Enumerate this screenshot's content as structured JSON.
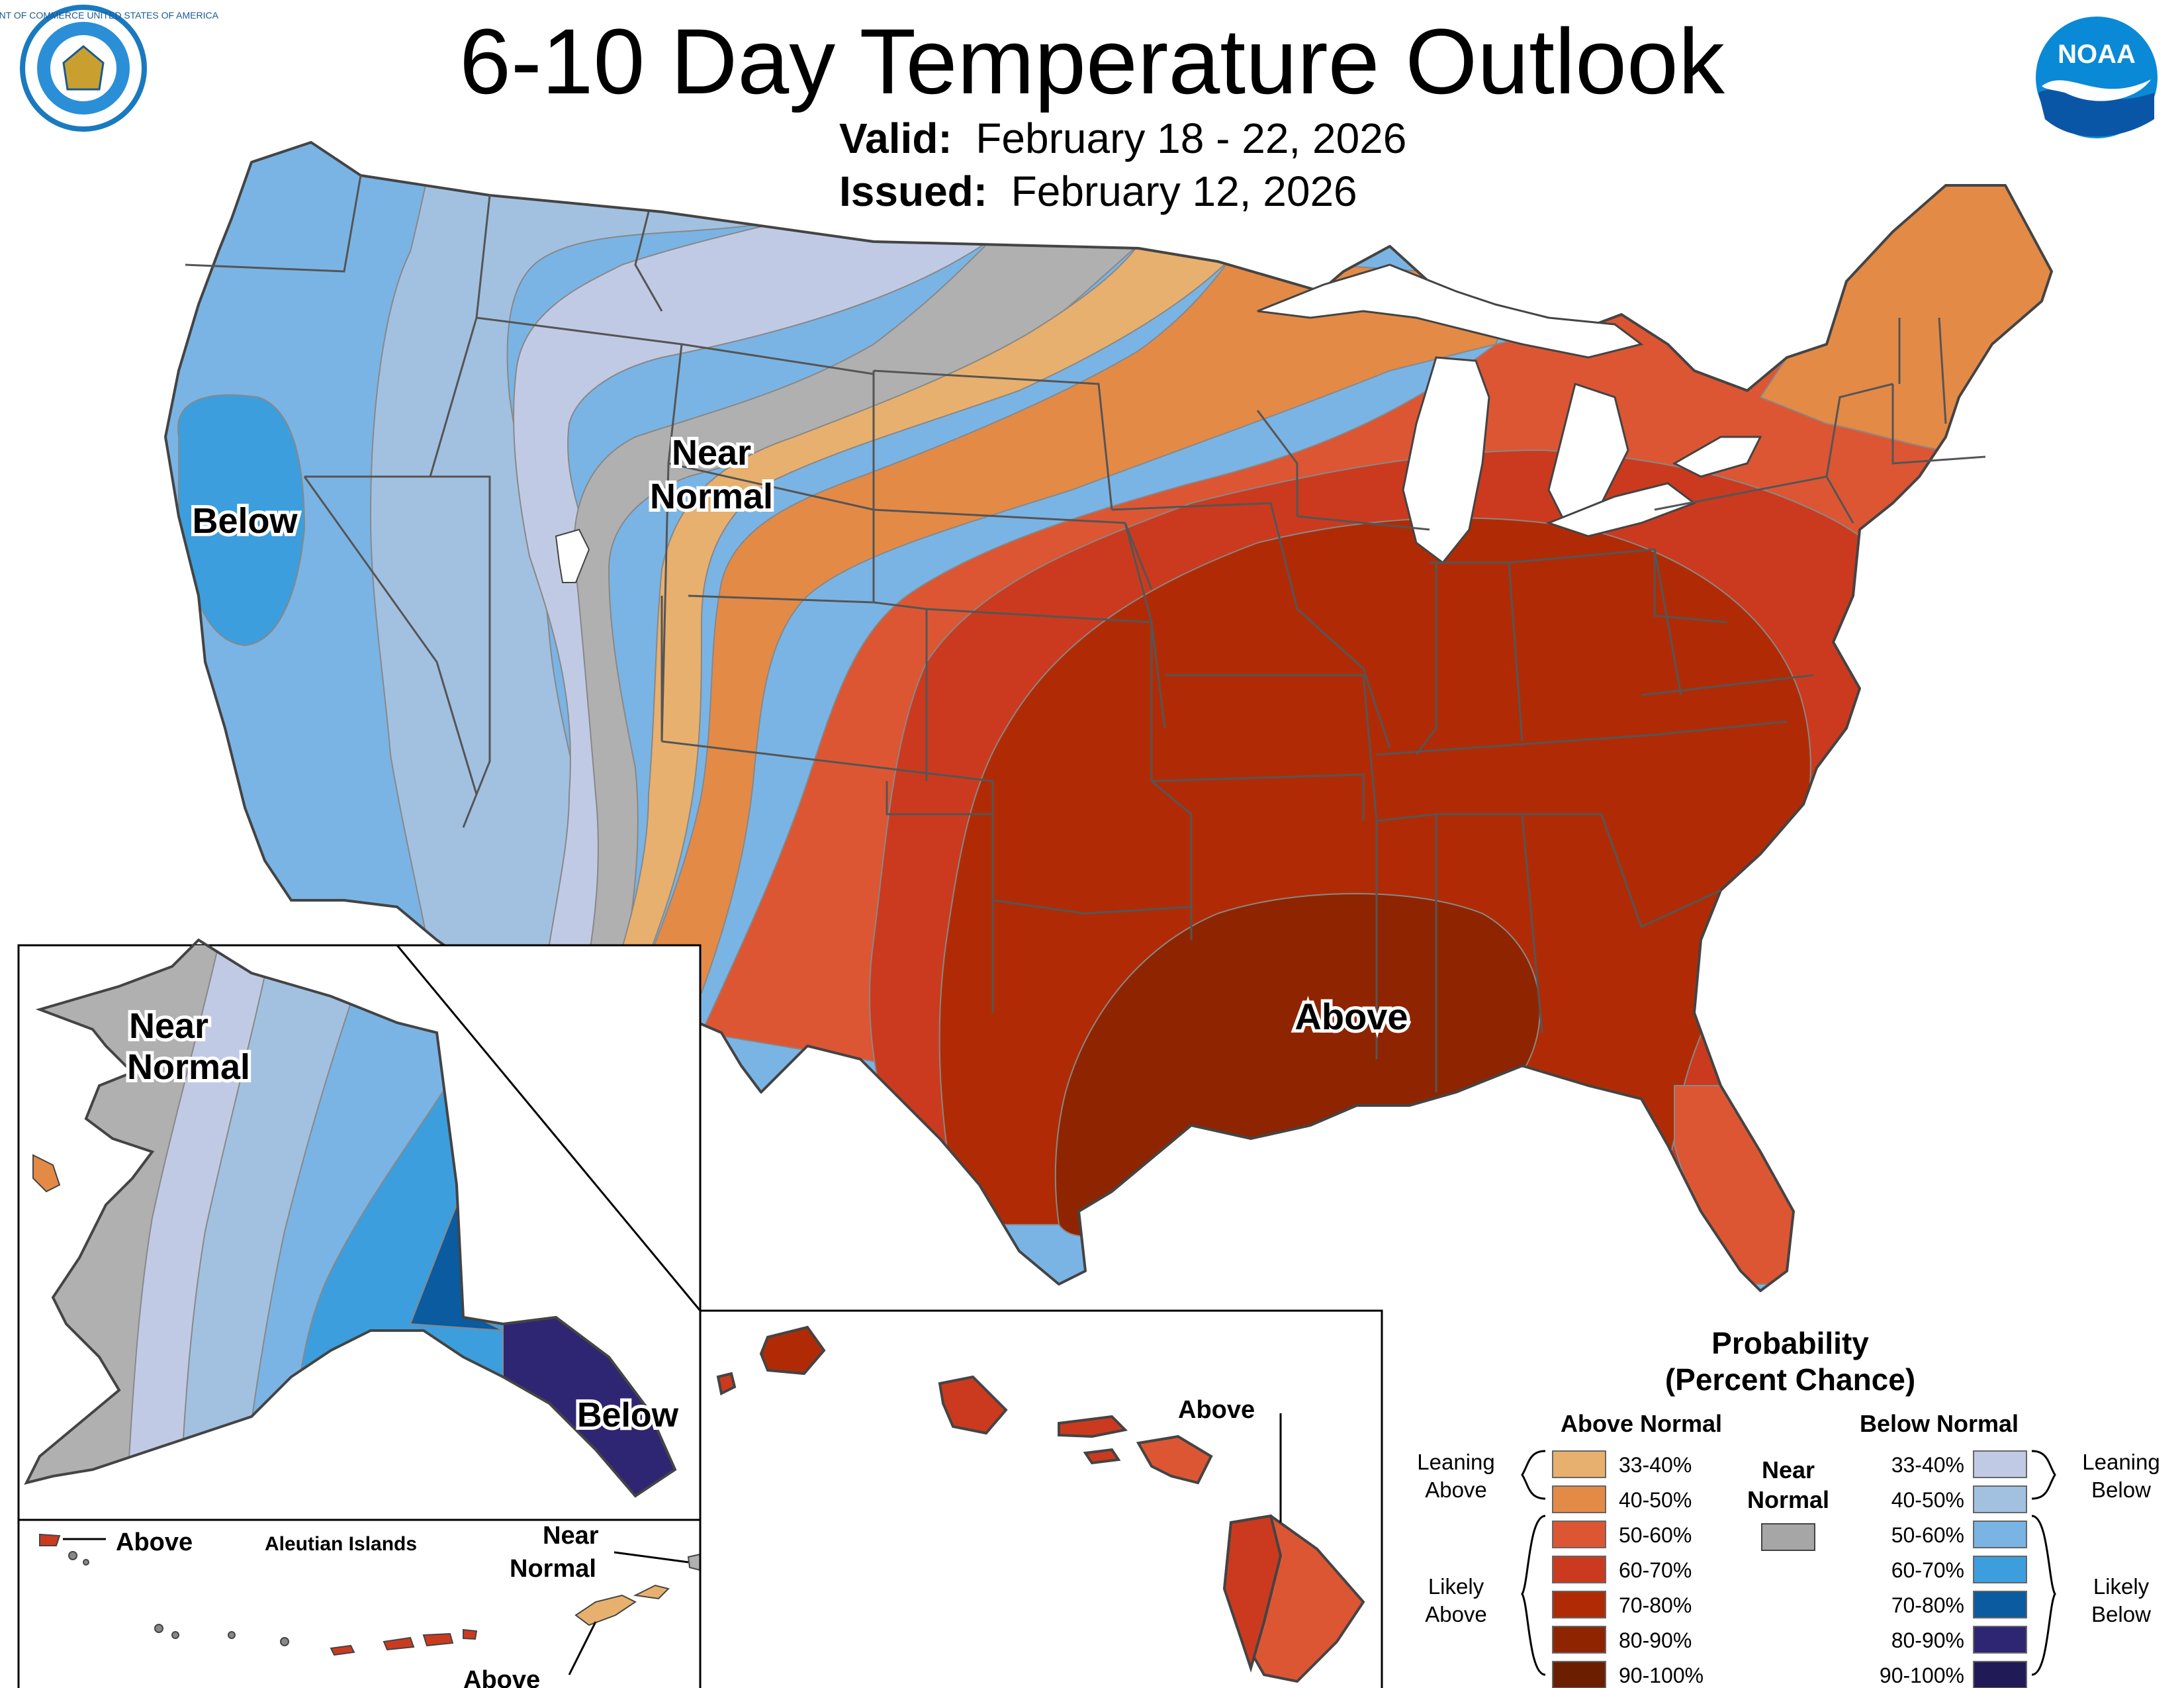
{
  "header": {
    "title": "6-10 Day Temperature Outlook",
    "valid_label": "Valid:",
    "valid_value": "February 18 - 22, 2026",
    "issued_label": "Issued:",
    "issued_value": "February 12, 2026"
  },
  "logos": {
    "commerce_seal": "DEPARTMENT OF COMMERCE UNITED STATES OF AMERICA",
    "noaa": "NOAA"
  },
  "map_labels": {
    "conus_below": "Below",
    "conus_near_1": "Near",
    "conus_near_2": "Normal",
    "conus_above": "Above",
    "ak_near_1": "Near",
    "ak_near_2": "Normal",
    "ak_below": "Below",
    "aleutian_title": "Aleutian Islands",
    "aleutian_above_1": "Above",
    "aleutian_near_1": "Near",
    "aleutian_near_2": "Normal",
    "aleutian_above_2": "Above",
    "hawaii_above": "Above"
  },
  "legend": {
    "title_1": "Probability",
    "title_2": "(Percent Chance)",
    "above_header": "Above Normal",
    "below_header": "Below Normal",
    "near_1": "Near",
    "near_2": "Normal",
    "near_color": "#a6a6a6",
    "leaning_above_1": "Leaning",
    "leaning_above_2": "Above",
    "likely_above_1": "Likely",
    "likely_above_2": "Above",
    "leaning_below_1": "Leaning",
    "leaning_below_2": "Below",
    "likely_below_1": "Likely",
    "likely_below_2": "Below",
    "above": [
      {
        "label": "33-40%",
        "color": "#e8b06e"
      },
      {
        "label": "40-50%",
        "color": "#e38a47"
      },
      {
        "label": "50-60%",
        "color": "#dc5634"
      },
      {
        "label": "60-70%",
        "color": "#cb3a1e"
      },
      {
        "label": "70-80%",
        "color": "#b02b05"
      },
      {
        "label": "80-90%",
        "color": "#8e2500"
      },
      {
        "label": "90-100%",
        "color": "#6b1e00"
      }
    ],
    "below": [
      {
        "label": "33-40%",
        "color": "#c1cae5"
      },
      {
        "label": "40-50%",
        "color": "#a2c1e1"
      },
      {
        "label": "50-60%",
        "color": "#7ab4e4"
      },
      {
        "label": "60-70%",
        "color": "#3c9edd"
      },
      {
        "label": "70-80%",
        "color": "#0a5ba0"
      },
      {
        "label": "80-90%",
        "color": "#2e2673"
      },
      {
        "label": "90-100%",
        "color": "#201a56"
      }
    ]
  }
}
